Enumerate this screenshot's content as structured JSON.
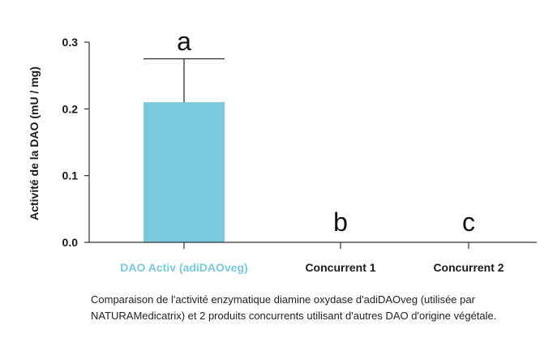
{
  "chart_data": {
    "type": "bar",
    "categories": [
      "DAO Activ (adiDAOveg)",
      "Concurrent 1",
      "Concurrent 2"
    ],
    "values": [
      0.21,
      0,
      0
    ],
    "error_upper": [
      0.275,
      null,
      null
    ],
    "significance_letters": [
      "a",
      "b",
      "c"
    ],
    "ylabel": "Activité de la DAO (mU / mg)",
    "ylim": [
      0,
      0.3
    ],
    "yticks": [
      {
        "value": 0.0,
        "label": "0.0"
      },
      {
        "value": 0.1,
        "label": "0.1"
      },
      {
        "value": 0.2,
        "label": "0.2"
      },
      {
        "value": 0.3,
        "label": "0.3"
      }
    ],
    "grid": false,
    "colors": {
      "bar": "#7ac9dc",
      "highlight_label": "#7ac9dc",
      "axis": "#333333",
      "text": "#1a1a1a"
    }
  },
  "caption": {
    "line1": "Comparaison de l'activité enzymatique diamine oxydase d'adiDAOveg (utilisée par",
    "line2": "NATURAMedicatrix) et 2 produits concurrents utilisant d'autres DAO d'origine végétale."
  }
}
